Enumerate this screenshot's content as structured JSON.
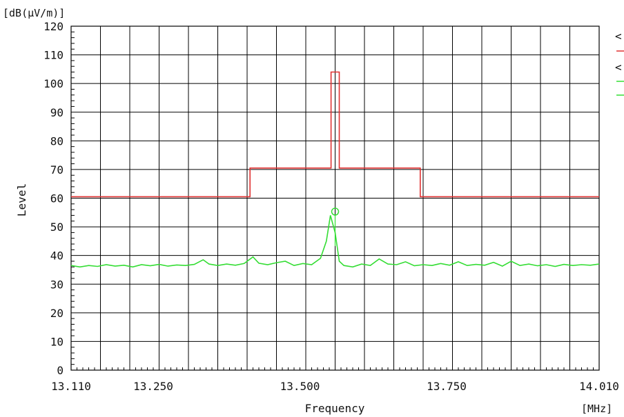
{
  "chart_data": {
    "type": "line",
    "y_unit": "[dB(μV/m)]",
    "x_unit": "[MHz]",
    "xlabel": "Frequency",
    "ylabel": "Level",
    "xlim": [
      13.11,
      14.01
    ],
    "ylim": [
      0,
      120
    ],
    "y_ticks": [
      "0",
      "10",
      "20",
      "30",
      "40",
      "50",
      "60",
      "70",
      "80",
      "90",
      "100",
      "110",
      "120"
    ],
    "x_ticks": [
      {
        "value": 13.11,
        "label": "13.110"
      },
      {
        "value": 13.25,
        "label": "13.250"
      },
      {
        "value": 13.5,
        "label": "13.500"
      },
      {
        "value": 13.75,
        "label": "13.750"
      },
      {
        "value": 14.01,
        "label": "14.010"
      }
    ],
    "grid": true,
    "series": [
      {
        "color": "#e03030",
        "step": true,
        "x": [
          13.11,
          13.415,
          13.415,
          13.553,
          13.553,
          13.567,
          13.567,
          13.705,
          13.705,
          14.01
        ],
        "y": [
          60.5,
          60.5,
          70.5,
          70.5,
          104,
          104,
          70.5,
          70.5,
          60.5,
          60.5
        ]
      },
      {
        "color": "#33dd33",
        "x": [
          13.11,
          13.125,
          13.14,
          13.155,
          13.17,
          13.185,
          13.2,
          13.215,
          13.23,
          13.245,
          13.26,
          13.275,
          13.29,
          13.305,
          13.32,
          13.335,
          13.345,
          13.36,
          13.375,
          13.39,
          13.405,
          13.42,
          13.43,
          13.445,
          13.46,
          13.475,
          13.49,
          13.505,
          13.52,
          13.535,
          13.545,
          13.552,
          13.56,
          13.567,
          13.575,
          13.59,
          13.605,
          13.62,
          13.635,
          13.65,
          13.665,
          13.68,
          13.695,
          13.71,
          13.725,
          13.74,
          13.755,
          13.77,
          13.785,
          13.8,
          13.815,
          13.83,
          13.845,
          13.86,
          13.875,
          13.89,
          13.905,
          13.92,
          13.935,
          13.95,
          13.965,
          13.98,
          13.995,
          14.01
        ],
        "y": [
          36.5,
          36.0,
          36.5,
          36.2,
          36.8,
          36.3,
          36.6,
          36.0,
          36.8,
          36.4,
          36.9,
          36.3,
          36.7,
          36.5,
          36.9,
          38.5,
          37.0,
          36.5,
          37.0,
          36.6,
          37.2,
          39.5,
          37.3,
          36.8,
          37.5,
          38.0,
          36.5,
          37.2,
          36.8,
          39.0,
          45.0,
          54.0,
          48.0,
          38.0,
          36.5,
          36.0,
          37.0,
          36.5,
          38.8,
          37.0,
          36.8,
          37.8,
          36.4,
          36.8,
          36.5,
          37.2,
          36.6,
          37.8,
          36.5,
          36.9,
          36.6,
          37.6,
          36.3,
          38.0,
          36.5,
          37.0,
          36.4,
          36.8,
          36.2,
          36.9,
          36.5,
          36.8,
          36.6,
          37.0
        ]
      }
    ],
    "marker": {
      "x": 13.56,
      "y": 55.3,
      "color": "#33dd33"
    },
    "legend": {
      "placement": "right",
      "items": [
        {
          "symbol": "<",
          "color": "#999999"
        },
        {
          "symbol": "_",
          "color": "#e03030"
        },
        {
          "symbol": "<",
          "color": "#999999"
        },
        {
          "symbol": "_",
          "color": "#33dd33"
        },
        {
          "symbol": "_",
          "color": "#33dd33"
        }
      ]
    }
  }
}
